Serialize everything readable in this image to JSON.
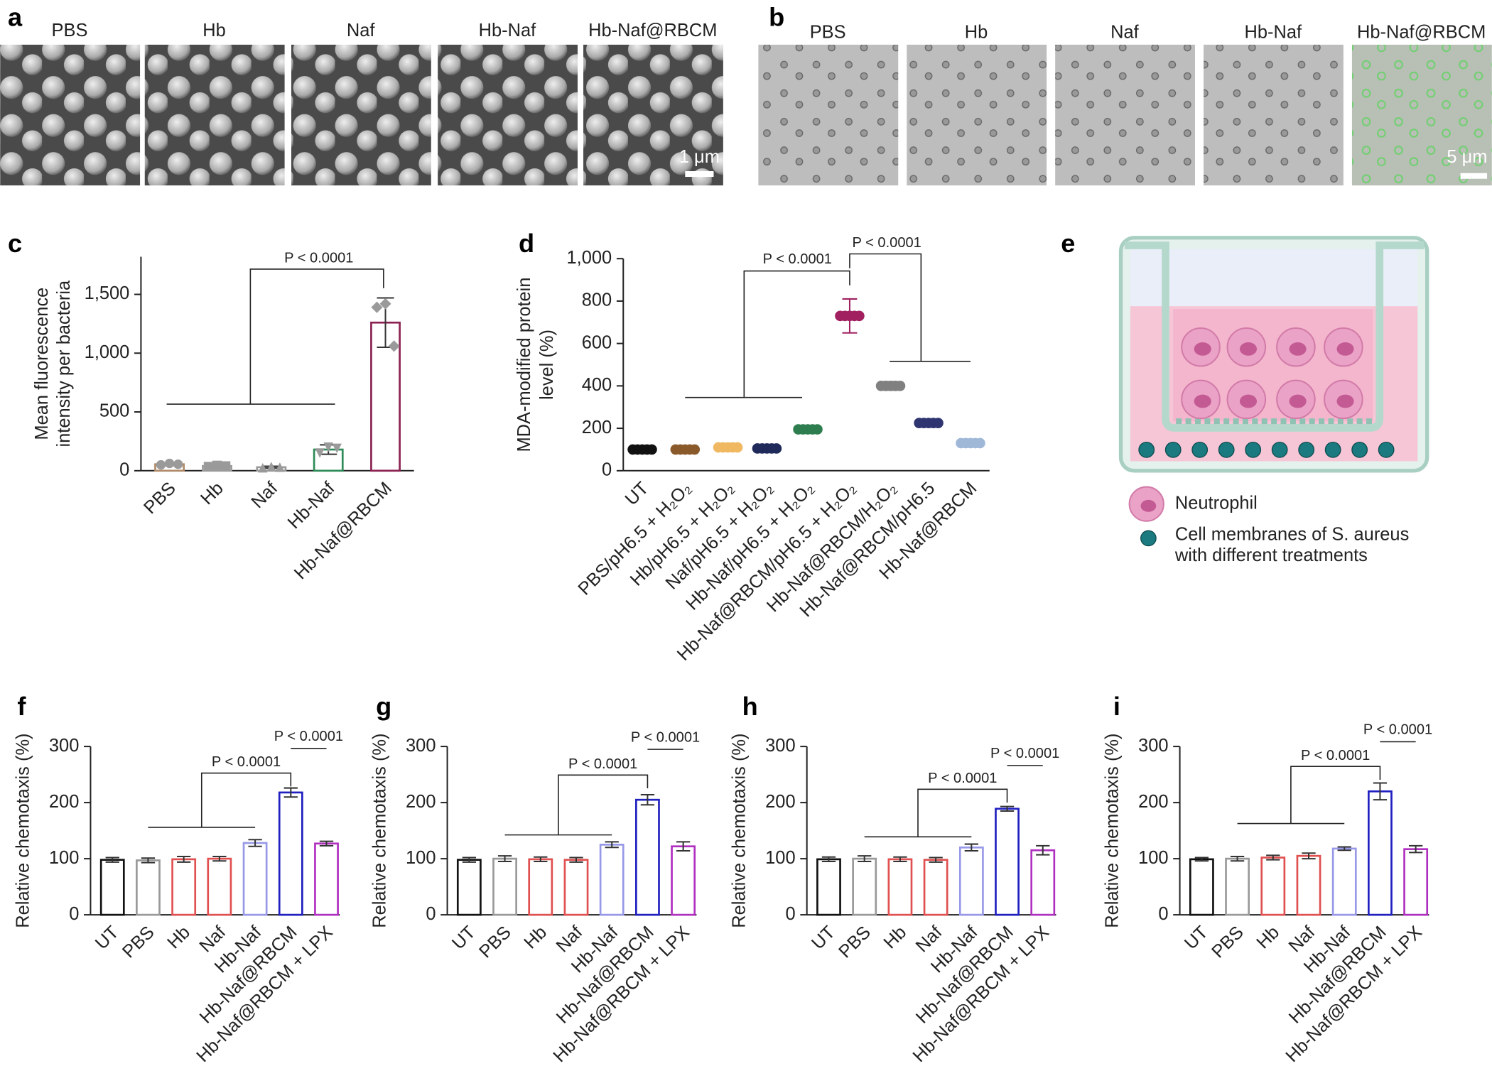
{
  "panel_labels": [
    "a",
    "b",
    "c",
    "d",
    "e",
    "f",
    "g",
    "h",
    "i"
  ],
  "panel_a": {
    "labels": [
      "PBS",
      "Hb",
      "Naf",
      "Hb-Naf",
      "Hb-Naf@RBCM"
    ],
    "scale_bar": "1 μm"
  },
  "panel_b": {
    "labels": [
      "PBS",
      "Hb",
      "Naf",
      "Hb-Naf",
      "Hb-Naf@RBCM"
    ],
    "scale_bar": "5 μm"
  },
  "panel_e": {
    "legend": [
      "Neutrophil",
      "Cell membranes of S. aureus",
      "with different treatments"
    ]
  },
  "chart_data": [
    {
      "type": "bar",
      "ylabel": [
        "Mean fluorescence",
        "intensity per bacteria"
      ],
      "categories": [
        "PBS",
        "Hb",
        "Naf",
        "Hb-Naf",
        "Hb-Naf@RBCM"
      ],
      "values": [
        55,
        40,
        30,
        180,
        1260
      ],
      "errors": [
        10,
        8,
        8,
        40,
        210
      ],
      "points": [
        [
          50,
          62,
          55
        ],
        [
          35,
          45,
          40
        ],
        [
          25,
          35,
          30
        ],
        [
          150,
          200,
          190
        ],
        [
          1390,
          1420,
          1060
        ]
      ],
      "colors": [
        "#b08a6a",
        "#9a9a9a",
        "#9a9a9a",
        "#2e8b57",
        "#8b2252"
      ],
      "ylim": [
        0,
        1820
      ],
      "yticks": [
        0,
        500,
        {
          "value": 1000,
          "label": "1,000"
        },
        {
          "value": 1500,
          "label": "1,500"
        }
      ],
      "annotations": [
        "P < 0.0001"
      ]
    },
    {
      "type": "dotplot",
      "ylabel": [
        "MDA-modified protein",
        "level (%)"
      ],
      "categories": [
        "UT",
        "PBS/pH6.5 + H₂O₂",
        "Hb/pH6.5 + H₂O₂",
        "Naf/pH6.5 + H₂O₂",
        "Hb-Naf/pH6.5 + H₂O₂",
        "Hb-Naf@RBCM/pH6.5 + H₂O₂",
        "Hb-Naf@RBCM/H₂O₂",
        "Hb-Naf@RBCM/pH6.5",
        "Hb-Naf@RBCM"
      ],
      "values": [
        100,
        100,
        110,
        105,
        195,
        730,
        400,
        225,
        130
      ],
      "errors": [
        8,
        10,
        12,
        10,
        12,
        80,
        20,
        18,
        12
      ],
      "colors": [
        "#111111",
        "#8b5a2b",
        "#f0b860",
        "#1f2a5a",
        "#2e7d4f",
        "#a02060",
        "#808080",
        "#2e3570",
        "#9fb8d8"
      ],
      "ylim": [
        0,
        1000
      ],
      "yticks": [
        0,
        200,
        400,
        600,
        800,
        {
          "value": 1000,
          "label": "1,000"
        }
      ],
      "annotations": [
        "P < 0.0001",
        "P < 0.0001"
      ]
    },
    {
      "type": "bar",
      "ylabel": [
        "Relative chemotaxis (%)"
      ],
      "categories": [
        "UT",
        "PBS",
        "Hb",
        "Naf",
        "Hb-Naf",
        "Hb-Naf@RBCM",
        "Hb-Naf@RBCM + LPX"
      ],
      "values": [
        98,
        97,
        99,
        100,
        128,
        218,
        127
      ],
      "errors": [
        4,
        4,
        5,
        4,
        6,
        8,
        4
      ],
      "colors": [
        "#111111",
        "#999999",
        "#e05050",
        "#e05050",
        "#9898e8",
        "#2020c0",
        "#b030c0"
      ],
      "ylim": [
        0,
        300
      ],
      "yticks": [
        0,
        100,
        200,
        300
      ],
      "annotations": [
        "P < 0.0001",
        "P < 0.0001"
      ]
    },
    {
      "type": "bar",
      "ylabel": [
        "Relative chemotaxis (%)"
      ],
      "categories": [
        "UT",
        "PBS",
        "Hb",
        "Naf",
        "Hb-Naf",
        "Hb-Naf@RBCM",
        "Hb-Naf@RBCM + LPX"
      ],
      "values": [
        98,
        100,
        99,
        98,
        125,
        205,
        122
      ],
      "errors": [
        4,
        5,
        4,
        4,
        5,
        9,
        8
      ],
      "colors": [
        "#111111",
        "#999999",
        "#e05050",
        "#e05050",
        "#9898e8",
        "#2020c0",
        "#b030c0"
      ],
      "ylim": [
        0,
        300
      ],
      "yticks": [
        0,
        100,
        200,
        300
      ],
      "annotations": [
        "P < 0.0001",
        "P < 0.0001"
      ]
    },
    {
      "type": "bar",
      "ylabel": [
        "Relative chemotaxis (%)"
      ],
      "categories": [
        "UT",
        "PBS",
        "Hb",
        "Naf",
        "Hb-Naf",
        "Hb-Naf@RBCM",
        "Hb-Naf@RBCM + LPX"
      ],
      "values": [
        99,
        100,
        99,
        98,
        120,
        189,
        115
      ],
      "errors": [
        4,
        5,
        4,
        4,
        6,
        4,
        8
      ],
      "colors": [
        "#111111",
        "#999999",
        "#e05050",
        "#e05050",
        "#9898e8",
        "#2020c0",
        "#b030c0"
      ],
      "ylim": [
        0,
        300
      ],
      "yticks": [
        0,
        100,
        200,
        300
      ],
      "annotations": [
        "P < 0.0001",
        "P < 0.0001"
      ]
    },
    {
      "type": "bar",
      "ylabel": [
        "Relative chemotaxis (%)"
      ],
      "categories": [
        "UT",
        "PBS",
        "Hb",
        "Naf",
        "Hb-Naf",
        "Hb-Naf@RBCM",
        "Hb-Naf@RBCM + LPX"
      ],
      "values": [
        99,
        100,
        102,
        105,
        118,
        220,
        117
      ],
      "errors": [
        3,
        4,
        4,
        5,
        3,
        15,
        6
      ],
      "colors": [
        "#111111",
        "#999999",
        "#e05050",
        "#e05050",
        "#9898e8",
        "#2020c0",
        "#b030c0"
      ],
      "ylim": [
        0,
        300
      ],
      "yticks": [
        0,
        100,
        200,
        300
      ],
      "annotations": [
        "P < 0.0001",
        "P < 0.0001"
      ]
    }
  ]
}
